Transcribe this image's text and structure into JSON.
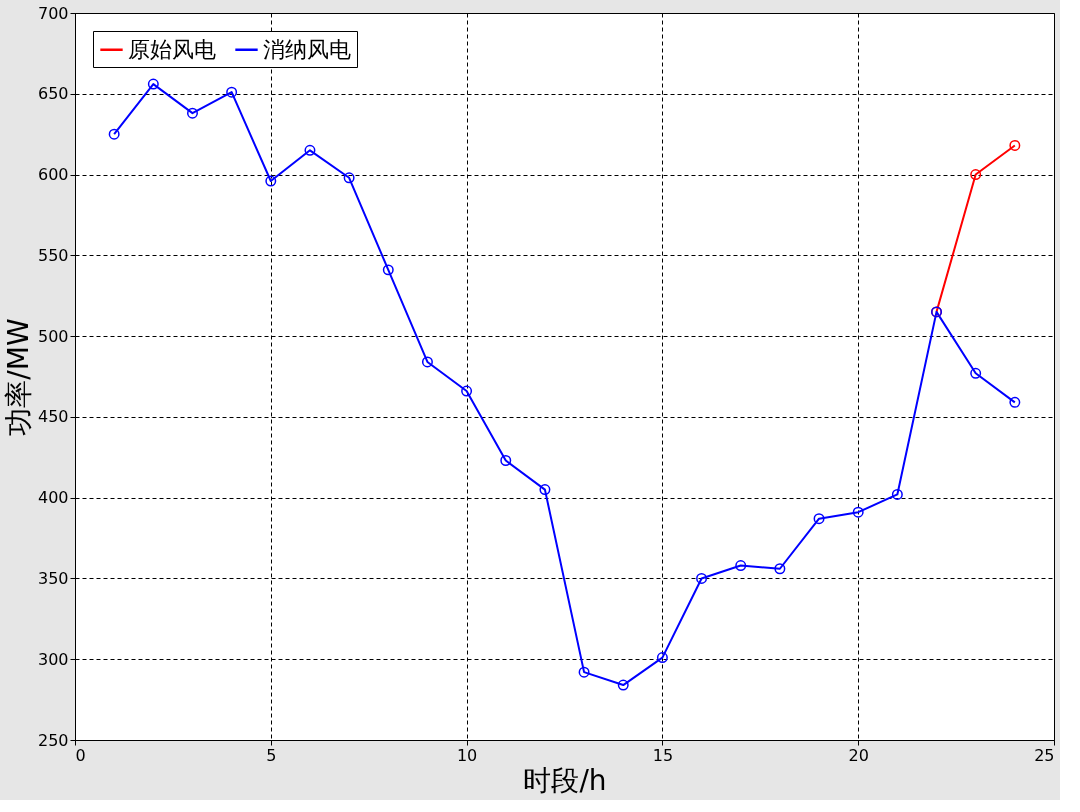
{
  "chart_data": {
    "type": "line",
    "xlabel": "时段/h",
    "ylabel": "功率/MW",
    "x": [
      1,
      2,
      3,
      4,
      5,
      6,
      7,
      8,
      9,
      10,
      11,
      12,
      13,
      14,
      15,
      16,
      17,
      18,
      19,
      20,
      21,
      22,
      23,
      24
    ],
    "series": [
      {
        "name": "原始风电",
        "color": "#ff0000",
        "values": [
          null,
          null,
          null,
          null,
          null,
          null,
          null,
          null,
          null,
          null,
          null,
          null,
          null,
          null,
          null,
          null,
          null,
          null,
          null,
          null,
          null,
          515,
          600,
          618
        ]
      },
      {
        "name": "消纳风电",
        "color": "#0000ff",
        "values": [
          625,
          656,
          638,
          651,
          596,
          615,
          598,
          541,
          484,
          466,
          423,
          405,
          292,
          284,
          301,
          350,
          358,
          356,
          387,
          391,
          402,
          515,
          477,
          459
        ]
      }
    ],
    "xlim": [
      0,
      25
    ],
    "xticks": [
      0,
      5,
      10,
      15,
      20,
      25
    ],
    "ylim": [
      250,
      700
    ],
    "yticks": [
      250,
      300,
      350,
      400,
      450,
      500,
      550,
      600,
      650,
      700
    ],
    "grid": true,
    "legend": "top left",
    "marker": "circle",
    "line_style": "solid"
  }
}
